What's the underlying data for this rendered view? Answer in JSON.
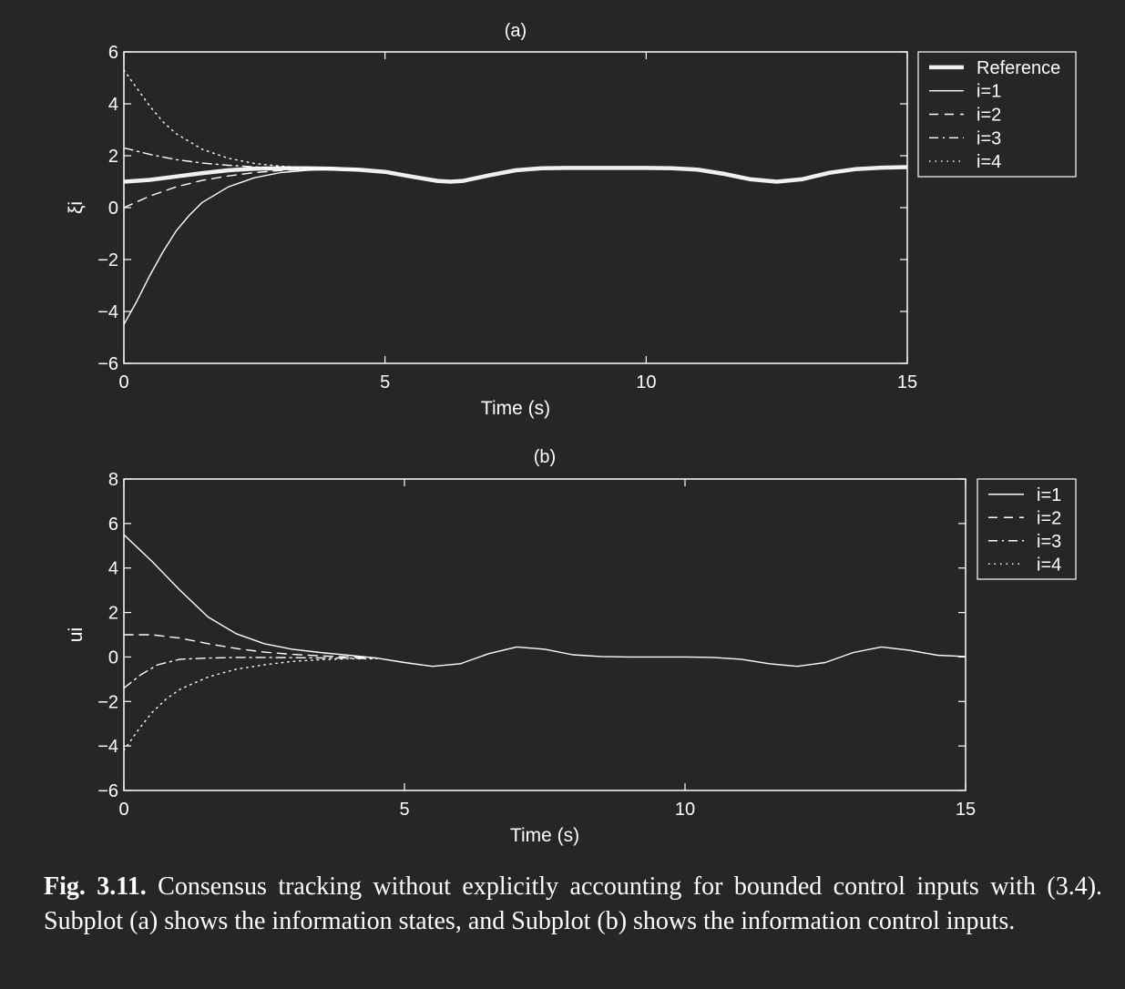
{
  "chart_data": [
    {
      "type": "line",
      "title": "(a)",
      "xlabel": "Time (s)",
      "ylabel": "ξi",
      "xlim": [
        0,
        15
      ],
      "ylim": [
        -6,
        6
      ],
      "xticks": [
        "0",
        "5",
        "10",
        "15"
      ],
      "yticks": [
        "6",
        "4",
        "2",
        "0",
        "−2",
        "−4",
        "−6"
      ],
      "legend_position": "outside-top-right",
      "series": [
        {
          "name": "Reference",
          "style": "thick-solid",
          "x": [
            0,
            0.5,
            1,
            1.5,
            2,
            2.5,
            3,
            3.5,
            4,
            4.5,
            5,
            5.5,
            6,
            6.25,
            6.5,
            7,
            7.5,
            8,
            8.5,
            9,
            9.5,
            10,
            10.5,
            11,
            11.5,
            12,
            12.5,
            13,
            13.5,
            14,
            14.5,
            15
          ],
          "y": [
            1.0,
            1.07,
            1.2,
            1.33,
            1.44,
            1.5,
            1.52,
            1.52,
            1.5,
            1.46,
            1.38,
            1.2,
            1.03,
            1.0,
            1.03,
            1.25,
            1.44,
            1.52,
            1.53,
            1.53,
            1.53,
            1.53,
            1.52,
            1.46,
            1.3,
            1.09,
            1.0,
            1.1,
            1.34,
            1.48,
            1.54,
            1.56
          ]
        },
        {
          "name": "i=1",
          "style": "solid",
          "x": [
            0,
            0.25,
            0.5,
            0.75,
            1,
            1.25,
            1.5,
            2,
            2.5,
            3,
            3.5,
            4,
            4.5
          ],
          "y": [
            -4.5,
            -3.6,
            -2.6,
            -1.7,
            -0.9,
            -0.3,
            0.2,
            0.8,
            1.15,
            1.35,
            1.44,
            1.48,
            1.46
          ]
        },
        {
          "name": "i=2",
          "style": "dashed",
          "x": [
            0,
            0.5,
            1,
            1.5,
            2,
            2.5,
            3,
            3.5,
            4
          ],
          "y": [
            0,
            0.45,
            0.8,
            1.05,
            1.22,
            1.35,
            1.43,
            1.48,
            1.49
          ]
        },
        {
          "name": "i=3",
          "style": "dashdot",
          "x": [
            0,
            0.5,
            1,
            1.5,
            2,
            2.5,
            3,
            3.5,
            4
          ],
          "y": [
            2.3,
            2.05,
            1.85,
            1.72,
            1.63,
            1.57,
            1.54,
            1.52,
            1.5
          ]
        },
        {
          "name": "i=4",
          "style": "dotted",
          "x": [
            0,
            0.25,
            0.5,
            0.75,
            1,
            1.5,
            2,
            2.5,
            3,
            3.5,
            4
          ],
          "y": [
            5.3,
            4.6,
            3.9,
            3.3,
            2.85,
            2.25,
            1.9,
            1.7,
            1.6,
            1.54,
            1.5
          ]
        }
      ]
    },
    {
      "type": "line",
      "title": "(b)",
      "xlabel": "Time (s)",
      "ylabel": "ui",
      "xlim": [
        0,
        15
      ],
      "ylim": [
        -6,
        8
      ],
      "xticks": [
        "0",
        "5",
        "10",
        "15"
      ],
      "yticks": [
        "8",
        "6",
        "4",
        "2",
        "0",
        "−2",
        "−4",
        "−6"
      ],
      "legend_position": "outside-top-right",
      "series": [
        {
          "name": "i=1",
          "style": "solid",
          "x": [
            0,
            0.5,
            1,
            1.5,
            2,
            2.5,
            3,
            3.5,
            4,
            4.5,
            5,
            5.5,
            6,
            6.5,
            7,
            7.5,
            8,
            8.5,
            9,
            9.5,
            10,
            10.5,
            11,
            11.5,
            12,
            12.5,
            13,
            13.5,
            14,
            14.5,
            15
          ],
          "y": [
            5.5,
            4.3,
            3.0,
            1.8,
            1.05,
            0.6,
            0.35,
            0.2,
            0.08,
            -0.05,
            -0.25,
            -0.42,
            -0.3,
            0.15,
            0.45,
            0.35,
            0.1,
            0.02,
            0.0,
            0.0,
            0.0,
            -0.02,
            -0.1,
            -0.3,
            -0.42,
            -0.25,
            0.2,
            0.45,
            0.3,
            0.08,
            0.02
          ]
        },
        {
          "name": "i=2",
          "style": "dashed",
          "x": [
            0,
            0.5,
            1,
            1.5,
            2,
            2.5,
            3,
            3.5,
            4,
            4.5
          ],
          "y": [
            1.0,
            1.0,
            0.85,
            0.6,
            0.38,
            0.22,
            0.12,
            0.05,
            0.0,
            -0.05
          ]
        },
        {
          "name": "i=3",
          "style": "dashdot",
          "x": [
            0,
            0.3,
            0.6,
            1,
            1.5,
            2,
            2.5,
            3,
            3.5,
            4,
            4.5
          ],
          "y": [
            -1.4,
            -0.8,
            -0.35,
            -0.1,
            -0.05,
            -0.02,
            -0.02,
            -0.03,
            -0.04,
            -0.05,
            -0.08
          ]
        },
        {
          "name": "i=4",
          "style": "dotted",
          "x": [
            0,
            0.25,
            0.5,
            0.75,
            1,
            1.5,
            2,
            2.5,
            3,
            3.5,
            4,
            4.5
          ],
          "y": [
            -4.2,
            -3.3,
            -2.5,
            -1.9,
            -1.45,
            -0.9,
            -0.55,
            -0.35,
            -0.2,
            -0.12,
            -0.08,
            -0.08
          ]
        }
      ]
    }
  ],
  "caption": {
    "label": "Fig. 3.11.",
    "text": "Consensus tracking without explicitly accounting for bounded control inputs with (3.4). Subplot (a) shows the information states, and Subplot (b) shows the information control inputs."
  }
}
